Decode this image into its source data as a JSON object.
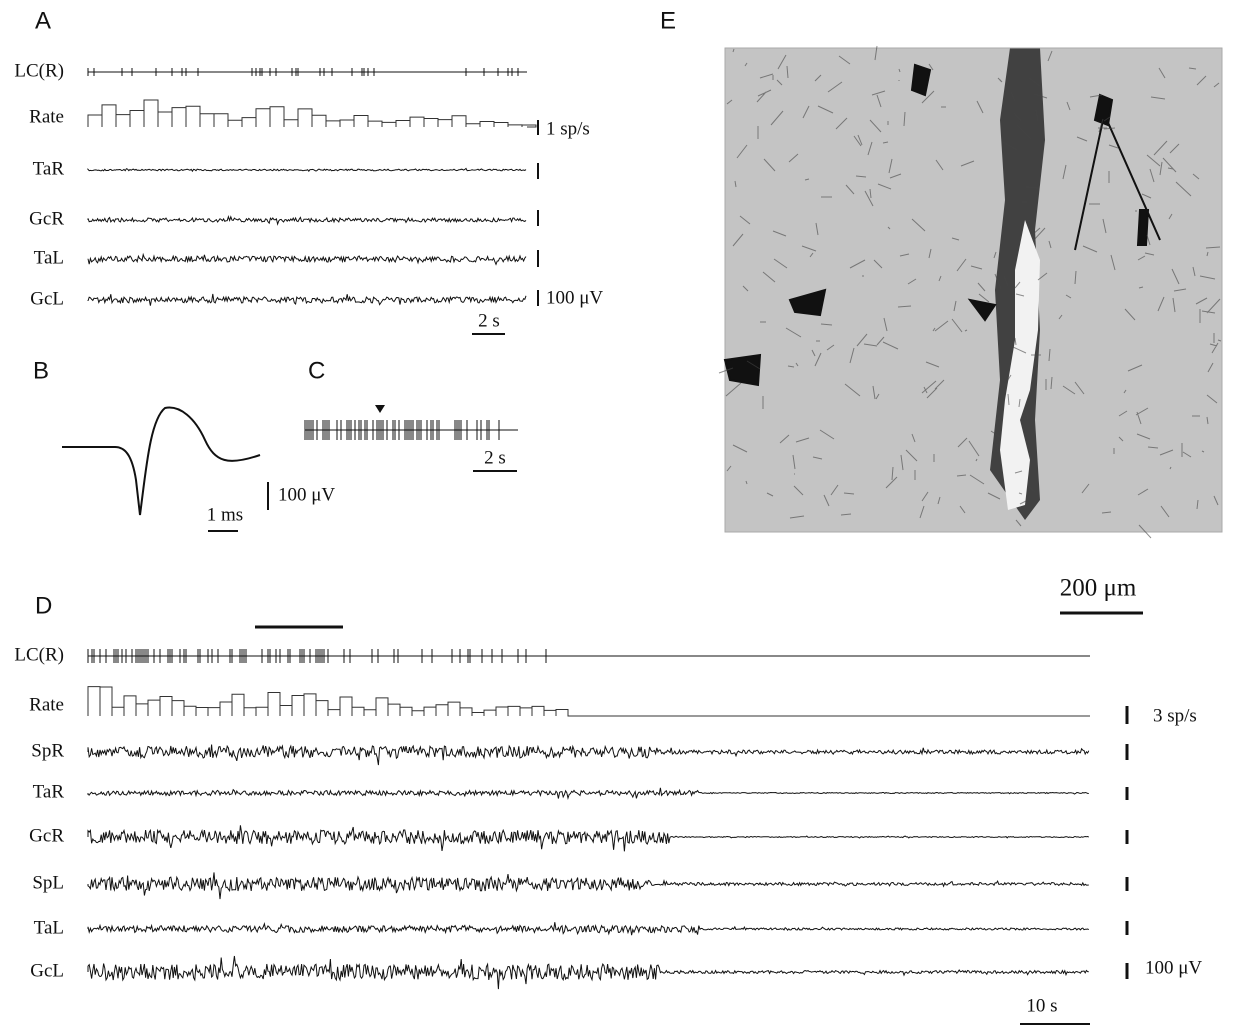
{
  "panels": {
    "A": {
      "label": "A",
      "traces": [
        "LC(R)",
        "Rate",
        "TaR",
        "GcR",
        "TaL",
        "GcL"
      ],
      "scale_labels": [
        "1 sp/s",
        "100 μV",
        "2 s"
      ]
    },
    "B": {
      "label": "B",
      "scale_labels": [
        "1 ms",
        "100 μV"
      ]
    },
    "C": {
      "label": "C",
      "scale_labels": [
        "2 s"
      ]
    },
    "D": {
      "label": "D",
      "traces": [
        "LC(R)",
        "Rate",
        "SpR",
        "TaR",
        "GcR",
        "SpL",
        "TaL",
        "GcL"
      ],
      "scale_labels": [
        "3 sp/s",
        "100 μV",
        "10 s"
      ]
    },
    "E": {
      "label": "E",
      "scale_labels": [
        "200 μm"
      ]
    }
  }
}
